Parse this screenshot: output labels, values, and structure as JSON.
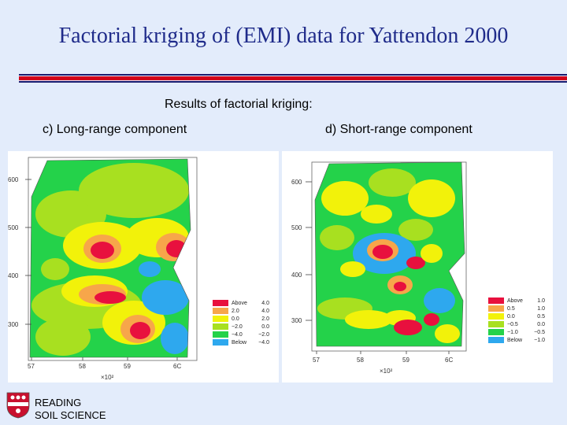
{
  "slide": {
    "title": "Factorial kriging of (EMI) data  for Yattendon 2000",
    "subtitle": "Results of factorial kriging:"
  },
  "panels": [
    {
      "label": "c) Long-range component",
      "y_ticks": [
        "600",
        "500",
        "400",
        "300"
      ],
      "x_ticks": [
        "57",
        "58",
        "59",
        "6C"
      ],
      "x_unit": "×10²",
      "legend": [
        {
          "label": "Above",
          "value": "4.0",
          "color": "#e8103e"
        },
        {
          "label": "2.0",
          "value": "4.0",
          "color": "#f7a64a"
        },
        {
          "label": "0.0",
          "value": "2.0",
          "color": "#f2f20a"
        },
        {
          "label": "−2.0",
          "value": "0.0",
          "color": "#a8e020"
        },
        {
          "label": "−4.0",
          "value": "−2.0",
          "color": "#24d24a"
        },
        {
          "label": "Below",
          "value": "−4.0",
          "color": "#2ea8ee"
        }
      ]
    },
    {
      "label": "d) Short-range component",
      "y_ticks": [
        "600",
        "500",
        "400",
        "300"
      ],
      "x_ticks": [
        "57",
        "58",
        "59",
        "6C"
      ],
      "x_unit": "×10²",
      "legend": [
        {
          "label": "Above",
          "value": "1.0",
          "color": "#e8103e"
        },
        {
          "label": "0.5",
          "value": "1.0",
          "color": "#f7a64a"
        },
        {
          "label": "0.0",
          "value": "0.5",
          "color": "#f2f20a"
        },
        {
          "label": "−0.5",
          "value": "0.0",
          "color": "#a8e020"
        },
        {
          "label": "−1.0",
          "value": "−0.5",
          "color": "#24d24a"
        },
        {
          "label": "Below",
          "value": "−1.0",
          "color": "#2ea8ee"
        }
      ]
    }
  ],
  "logo": {
    "line1": "READING",
    "line2": "SOIL SCIENCE"
  },
  "colors": {
    "background": "#e3ecfb",
    "title": "#1f2b8a",
    "rule_red": "#d2001a",
    "rule_navy": "#1a1a6e"
  }
}
